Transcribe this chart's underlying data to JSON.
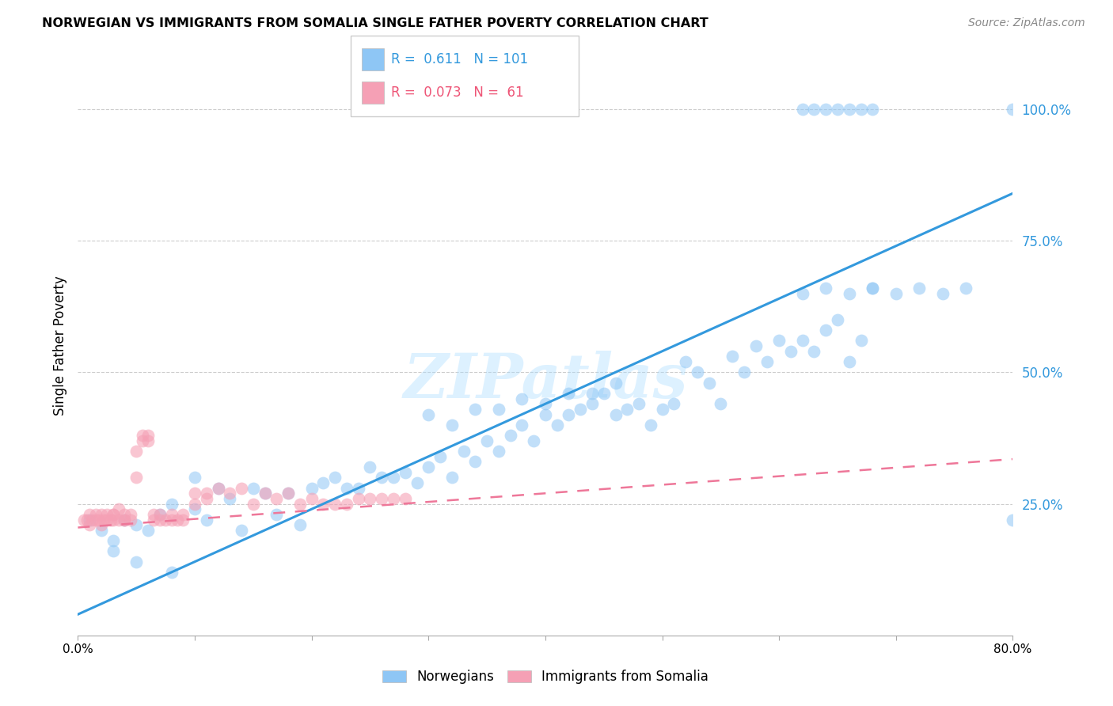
{
  "title": "NORWEGIAN VS IMMIGRANTS FROM SOMALIA SINGLE FATHER POVERTY CORRELATION CHART",
  "source": "Source: ZipAtlas.com",
  "ylabel": "Single Father Poverty",
  "xlim": [
    0.0,
    0.8
  ],
  "ylim": [
    0.0,
    1.1
  ],
  "norwegian_color": "#8ec6f5",
  "somali_color": "#f5a0b5",
  "norwegian_R": 0.611,
  "norwegian_N": 101,
  "somali_R": 0.073,
  "somali_N": 61,
  "trend_norwegian_color": "#3399dd",
  "trend_somali_color": "#ee7799",
  "watermark": "ZIPatlas",
  "nor_line_x0": 0.0,
  "nor_line_y0": 0.04,
  "nor_line_x1": 0.8,
  "nor_line_y1": 0.84,
  "som_line_x0": 0.0,
  "som_line_y0": 0.205,
  "som_line_x1": 0.8,
  "som_line_y1": 0.335,
  "norwegian_x": [
    0.01,
    0.02,
    0.03,
    0.04,
    0.05,
    0.06,
    0.07,
    0.08,
    0.03,
    0.05,
    0.08,
    0.1,
    0.11,
    0.13,
    0.14,
    0.16,
    0.17,
    0.19,
    0.2,
    0.1,
    0.12,
    0.15,
    0.18,
    0.21,
    0.22,
    0.23,
    0.24,
    0.25,
    0.26,
    0.27,
    0.28,
    0.29,
    0.3,
    0.31,
    0.32,
    0.33,
    0.34,
    0.35,
    0.36,
    0.37,
    0.38,
    0.39,
    0.4,
    0.41,
    0.42,
    0.43,
    0.44,
    0.45,
    0.46,
    0.47,
    0.48,
    0.3,
    0.32,
    0.34,
    0.36,
    0.38,
    0.4,
    0.42,
    0.44,
    0.46,
    0.49,
    0.5,
    0.51,
    0.52,
    0.53,
    0.54,
    0.55,
    0.56,
    0.57,
    0.58,
    0.59,
    0.6,
    0.61,
    0.62,
    0.63,
    0.64,
    0.65,
    0.66,
    0.67,
    0.68,
    0.63,
    0.65,
    0.67,
    0.62,
    0.64,
    0.66,
    0.68,
    0.8,
    0.82,
    0.83,
    0.8,
    0.82,
    0.83,
    0.62,
    0.64,
    0.66,
    0.68,
    0.7,
    0.72,
    0.74,
    0.76
  ],
  "norwegian_y": [
    0.22,
    0.2,
    0.18,
    0.22,
    0.21,
    0.2,
    0.23,
    0.25,
    0.16,
    0.14,
    0.12,
    0.24,
    0.22,
    0.26,
    0.2,
    0.27,
    0.23,
    0.21,
    0.28,
    0.3,
    0.28,
    0.28,
    0.27,
    0.29,
    0.3,
    0.28,
    0.28,
    0.32,
    0.3,
    0.3,
    0.31,
    0.29,
    0.32,
    0.34,
    0.3,
    0.35,
    0.33,
    0.37,
    0.35,
    0.38,
    0.4,
    0.37,
    0.42,
    0.4,
    0.42,
    0.43,
    0.44,
    0.46,
    0.42,
    0.43,
    0.44,
    0.42,
    0.4,
    0.43,
    0.43,
    0.45,
    0.44,
    0.46,
    0.46,
    0.48,
    0.4,
    0.43,
    0.44,
    0.52,
    0.5,
    0.48,
    0.44,
    0.53,
    0.5,
    0.55,
    0.52,
    0.56,
    0.54,
    0.56,
    0.54,
    0.58,
    0.6,
    0.52,
    0.56,
    0.66,
    1.0,
    1.0,
    1.0,
    1.0,
    1.0,
    1.0,
    1.0,
    1.0,
    1.0,
    1.0,
    0.22,
    0.23,
    0.21,
    0.65,
    0.66,
    0.65,
    0.66,
    0.65,
    0.66,
    0.65,
    0.66
  ],
  "somali_x": [
    0.005,
    0.008,
    0.01,
    0.01,
    0.012,
    0.015,
    0.015,
    0.018,
    0.02,
    0.02,
    0.022,
    0.025,
    0.025,
    0.028,
    0.03,
    0.03,
    0.03,
    0.035,
    0.035,
    0.04,
    0.04,
    0.04,
    0.045,
    0.045,
    0.05,
    0.05,
    0.055,
    0.055,
    0.06,
    0.06,
    0.065,
    0.065,
    0.07,
    0.07,
    0.075,
    0.08,
    0.08,
    0.085,
    0.09,
    0.09,
    0.1,
    0.1,
    0.11,
    0.11,
    0.12,
    0.13,
    0.14,
    0.15,
    0.16,
    0.17,
    0.18,
    0.19,
    0.2,
    0.21,
    0.22,
    0.23,
    0.24,
    0.25,
    0.26,
    0.27,
    0.28
  ],
  "somali_y": [
    0.22,
    0.22,
    0.21,
    0.23,
    0.22,
    0.23,
    0.22,
    0.22,
    0.21,
    0.23,
    0.22,
    0.22,
    0.23,
    0.22,
    0.22,
    0.23,
    0.23,
    0.22,
    0.24,
    0.22,
    0.23,
    0.22,
    0.23,
    0.22,
    0.3,
    0.35,
    0.37,
    0.38,
    0.38,
    0.37,
    0.22,
    0.23,
    0.22,
    0.23,
    0.22,
    0.22,
    0.23,
    0.22,
    0.22,
    0.23,
    0.25,
    0.27,
    0.26,
    0.27,
    0.28,
    0.27,
    0.28,
    0.25,
    0.27,
    0.26,
    0.27,
    0.25,
    0.26,
    0.25,
    0.25,
    0.25,
    0.26,
    0.26,
    0.26,
    0.26,
    0.26
  ]
}
